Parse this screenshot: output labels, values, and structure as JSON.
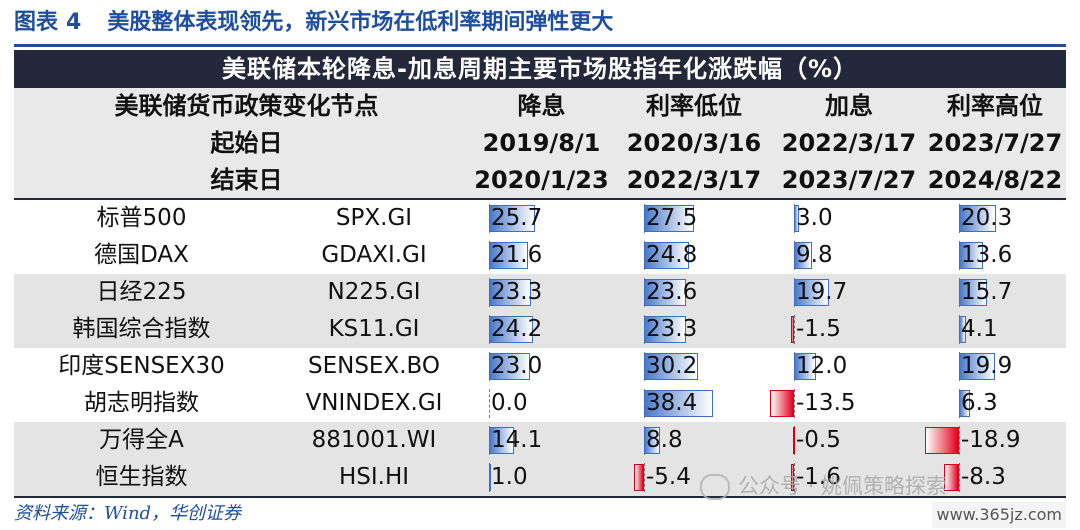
{
  "figure": {
    "label": "图表",
    "number": "4",
    "title": "美股整体表现领先，新兴市场在低利率期间弹性更大"
  },
  "table": {
    "banner": "美联储本轮降息-加息周期主要市场股指年化涨跌幅（%）",
    "header": {
      "row_labels": [
        "美联储货币政策变化节点",
        "起始日",
        "结束日"
      ],
      "columns": [
        {
          "phase": "降息",
          "start": "2019/8/1",
          "end": "2020/1/23"
        },
        {
          "phase": "利率低位",
          "start": "2020/3/16",
          "end": "2022/3/17"
        },
        {
          "phase": "加息",
          "start": "2022/3/17",
          "end": "2023/7/27"
        },
        {
          "phase": "利率高位",
          "start": "2023/7/27",
          "end": "2024/8/22"
        }
      ]
    },
    "rows": [
      {
        "name": "标普500",
        "code": "SPX.GI",
        "values": [
          25.7,
          27.5,
          3.0,
          20.3
        ],
        "labels": [
          "25.7",
          "27.5",
          "3.0",
          "20.3"
        ]
      },
      {
        "name": "德国DAX",
        "code": "GDAXI.GI",
        "values": [
          21.6,
          24.8,
          9.8,
          13.6
        ],
        "labels": [
          "21.6",
          "24.8",
          "9.8",
          "13.6"
        ]
      },
      {
        "name": "日经225",
        "code": "N225.GI",
        "values": [
          23.3,
          23.6,
          19.7,
          15.7
        ],
        "labels": [
          "23.3",
          "23.6",
          "19.7",
          "15.7"
        ]
      },
      {
        "name": "韩国综合指数",
        "code": "KS11.GI",
        "values": [
          24.2,
          23.3,
          -1.5,
          4.1
        ],
        "labels": [
          "24.2",
          "23.3",
          "-1.5",
          "4.1"
        ]
      },
      {
        "name": "印度SENSEX30",
        "code": "SENSEX.BO",
        "values": [
          23.0,
          30.2,
          12.0,
          19.9
        ],
        "labels": [
          "23.0",
          "30.2",
          "12.0",
          "19.9"
        ]
      },
      {
        "name": "胡志明指数",
        "code": "VNINDEX.GI",
        "values": [
          0.0,
          38.4,
          -13.5,
          6.3
        ],
        "labels": [
          "0.0",
          "38.4",
          "-13.5",
          "6.3"
        ]
      },
      {
        "name": "万得全A",
        "code": "881001.WI",
        "values": [
          14.1,
          8.8,
          -0.5,
          -18.9
        ],
        "labels": [
          "14.1",
          "8.8",
          "-0.5",
          "-18.9"
        ]
      },
      {
        "name": "恒生指数",
        "code": "HSI.HI",
        "values": [
          1.0,
          -5.4,
          -1.6,
          -8.3
        ],
        "labels": [
          "1.0",
          "-5.4",
          "-1.6",
          "-8.3"
        ]
      }
    ]
  },
  "source": "资料来源：Wind，华创证券",
  "watermark": "公众号 · 姚佩策略探索",
  "site": "www.365jz.com",
  "colors": {
    "title": "#1f4e9e",
    "banner_bg": "#23283a",
    "positive_bar": "#4a79c9",
    "negative_bar": "#e4001b",
    "shade": "#e4e4e4"
  }
}
